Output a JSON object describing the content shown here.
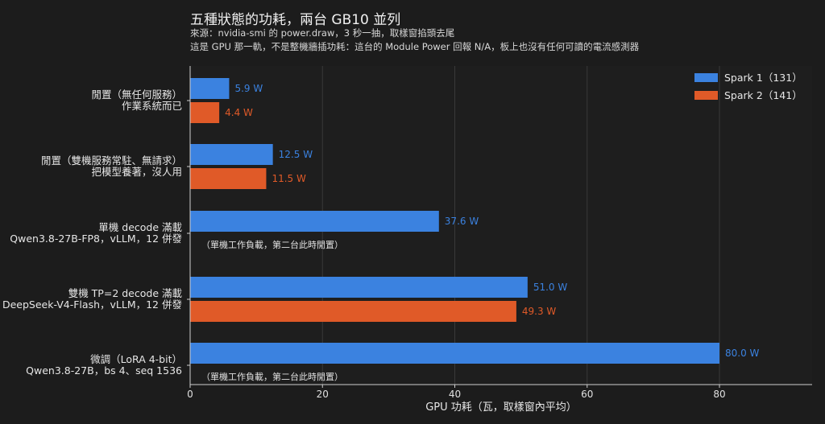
{
  "chart_data": {
    "type": "bar",
    "orientation": "horizontal",
    "title": "五種狀態的功耗，兩台 GB10 並列",
    "subtitle_lines": [
      "來源：nvidia-smi 的 power.draw，3 秒一抽，取樣窗掐頭去尾",
      "這是 GPU 那一軌，不是整機牆插功耗：這台的 Module Power 回報 N/A，板上也沒有任何可讀的電流感測器"
    ],
    "xlabel": "GPU 功耗（瓦，取樣窗內平均）",
    "ylabel": "",
    "xlim": [
      0,
      94
    ],
    "xticks": [
      0,
      20,
      40,
      60,
      80
    ],
    "grid": true,
    "legend_position": "top-right",
    "categories": [
      [
        "閒置（無任何服務）",
        "作業系統而已"
      ],
      [
        "閒置（雙機服務常駐、無請求）",
        "把模型養著，沒人用"
      ],
      [
        "單機 decode 滿載",
        "Qwen3.8-27B-FP8，vLLM，12 併發"
      ],
      [
        "雙機 TP=2 decode 滿載",
        "DeepSeek-V4-Flash，vLLM，12 併發"
      ],
      [
        "微調（LoRA 4-bit）",
        "Qwen3.8-27B，bs 4、seq 1536"
      ]
    ],
    "series": [
      {
        "name": "Spark 1（131）",
        "color": "#3b82e0",
        "values": [
          5.9,
          12.5,
          37.6,
          51.0,
          80.0
        ]
      },
      {
        "name": "Spark 2（141）",
        "color": "#e05a28",
        "values": [
          4.4,
          11.5,
          null,
          49.3,
          null
        ]
      }
    ],
    "value_labels": {
      "Spark 1（131）": [
        "5.9 W",
        "12.5 W",
        "37.6 W",
        "51.0 W",
        "80.0 W"
      ],
      "Spark 2（141）": [
        "4.4 W",
        "11.5 W",
        "",
        "49.3 W",
        ""
      ]
    },
    "annotations": [
      {
        "category_index": 2,
        "text": "（單機工作負載，第二台此時閒置）"
      },
      {
        "category_index": 4,
        "text": "（單機工作負載，第二台此時閒置）"
      }
    ]
  }
}
